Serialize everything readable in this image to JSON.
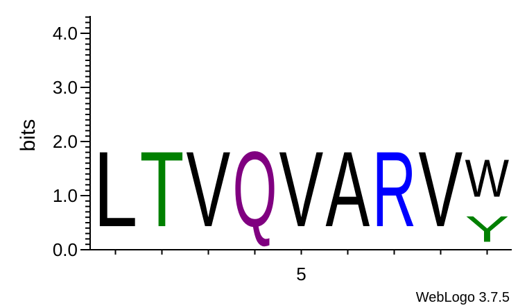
{
  "chart_data": {
    "type": "sequence-logo",
    "ylabel": "bits",
    "ylim": [
      0,
      4.32
    ],
    "yticks": [
      "0.0",
      "1.0",
      "2.0",
      "3.0",
      "4.0"
    ],
    "xtick_labels": [
      {
        "position": 5,
        "label": "5"
      }
    ],
    "positions": [
      {
        "position": 1,
        "stack": [
          {
            "letter": "L",
            "bits": 2.22,
            "color": "#000000"
          }
        ]
      },
      {
        "position": 2,
        "stack": [
          {
            "letter": "T",
            "bits": 2.22,
            "color": "#008000"
          }
        ]
      },
      {
        "position": 3,
        "stack": [
          {
            "letter": "V",
            "bits": 2.22,
            "color": "#000000"
          }
        ]
      },
      {
        "position": 4,
        "stack": [
          {
            "letter": "Q",
            "bits": 2.22,
            "color": "#800080"
          }
        ]
      },
      {
        "position": 5,
        "stack": [
          {
            "letter": "V",
            "bits": 2.22,
            "color": "#000000"
          }
        ]
      },
      {
        "position": 6,
        "stack": [
          {
            "letter": "A",
            "bits": 2.22,
            "color": "#000000"
          }
        ]
      },
      {
        "position": 7,
        "stack": [
          {
            "letter": "R",
            "bits": 2.22,
            "color": "#0000ff"
          }
        ]
      },
      {
        "position": 8,
        "stack": [
          {
            "letter": "V",
            "bits": 2.22,
            "color": "#000000"
          }
        ]
      },
      {
        "position": 9,
        "stack": [
          {
            "letter": "Y",
            "bits": 0.76,
            "color": "#008000"
          },
          {
            "letter": "W",
            "bits": 1.11,
            "color": "#000000"
          }
        ]
      }
    ]
  },
  "footer": {
    "text": "WebLogo 3.7.5"
  }
}
